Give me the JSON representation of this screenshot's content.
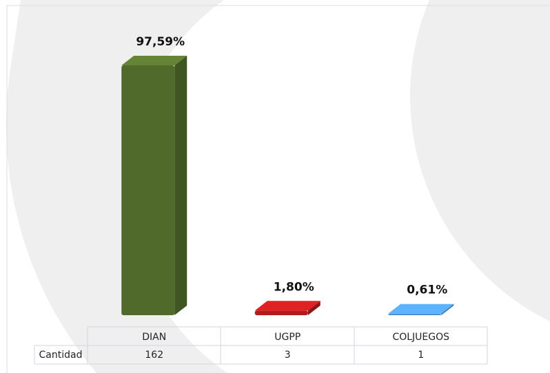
{
  "chart_data": {
    "type": "bar3d",
    "categories": [
      "DIAN",
      "UGPP",
      "COLJUEGOS"
    ],
    "values": [
      97.59,
      1.8,
      0.61
    ],
    "value_labels": [
      "97,59%",
      "1,80%",
      "0,61%"
    ],
    "colors": [
      "#4f6a2a",
      "#b31b1b",
      "#4a8fcf"
    ],
    "table": {
      "row_label": "Cantidad",
      "values": [
        162,
        3,
        1
      ]
    }
  }
}
